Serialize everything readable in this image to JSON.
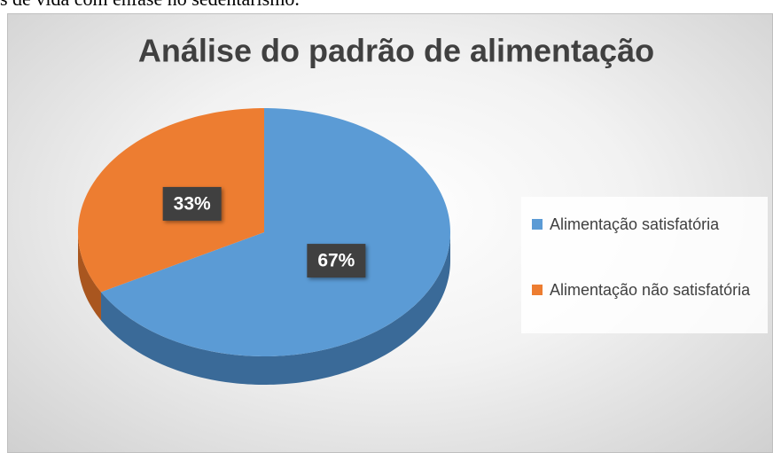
{
  "text_above": "s de vida com ênfase no sedentarismo.",
  "chart_data": {
    "type": "pie",
    "title": "Análise do padrão de alimentação",
    "categories": [
      "Alimentação satisfatória",
      "Alimentação não satisfatória"
    ],
    "values": [
      67,
      33
    ],
    "value_labels": [
      "67%",
      "33%"
    ],
    "colors": [
      "#5b9bd5",
      "#ed7d31"
    ],
    "side_colors": [
      "#3a6a98",
      "#a9561f"
    ],
    "legend": "right"
  }
}
